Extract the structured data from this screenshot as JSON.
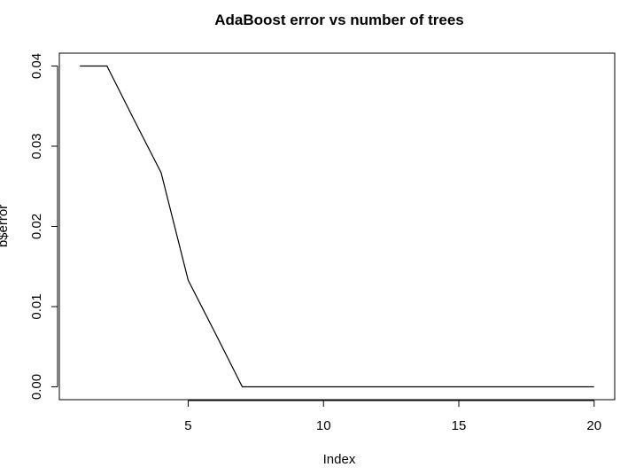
{
  "chart_data": {
    "type": "line",
    "title": "AdaBoost error vs number of trees",
    "xlabel": "Index",
    "ylabel": "b$error",
    "x": [
      1,
      2,
      3,
      4,
      5,
      6,
      7,
      8,
      9,
      10,
      11,
      12,
      13,
      14,
      15,
      16,
      17,
      18,
      19,
      20
    ],
    "series": [
      {
        "values": [
          0.04,
          0.04,
          0.0333,
          0.0267,
          0.0133,
          0.0067,
          0,
          0,
          0,
          0,
          0,
          0,
          0,
          0,
          0,
          0,
          0,
          0,
          0,
          0
        ]
      }
    ],
    "xlim": [
      0.24,
      20.76
    ],
    "ylim": [
      -0.0016,
      0.0416
    ],
    "x_ticks": [
      5,
      10,
      15,
      20
    ],
    "y_ticks": [
      0.0,
      0.01,
      0.02,
      0.03,
      0.04
    ],
    "x_tick_labels": [
      "5",
      "10",
      "15",
      "20"
    ],
    "y_tick_labels": [
      "0.00",
      "0.01",
      "0.02",
      "0.03",
      "0.04"
    ],
    "grid": false,
    "line_color": "#000000"
  }
}
